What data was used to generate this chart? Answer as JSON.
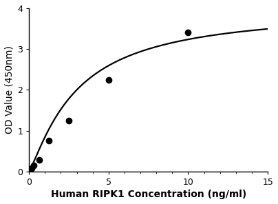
{
  "x_data": [
    0.0,
    0.078,
    0.156,
    0.313,
    0.625,
    1.25,
    2.5,
    5.0,
    10.0
  ],
  "y_data": [
    0.02,
    0.04,
    0.08,
    0.15,
    0.28,
    0.75,
    1.25,
    2.25,
    3.4
  ],
  "xlabel": "Human RIPK1 Concentration (ng/ml)",
  "ylabel": "OD Value (450nm)",
  "xlim": [
    0,
    15
  ],
  "ylim": [
    0,
    4
  ],
  "xticks": [
    0,
    5,
    10,
    15
  ],
  "yticks": [
    0,
    1,
    2,
    3,
    4
  ],
  "line_color": "#000000",
  "marker_color": "#000000",
  "marker_size": 6,
  "line_width": 1.6,
  "background_color": "#ffffff",
  "xlabel_fontsize": 10,
  "ylabel_fontsize": 10,
  "tick_fontsize": 9,
  "xlabel_bold": true,
  "ylabel_bold": false
}
